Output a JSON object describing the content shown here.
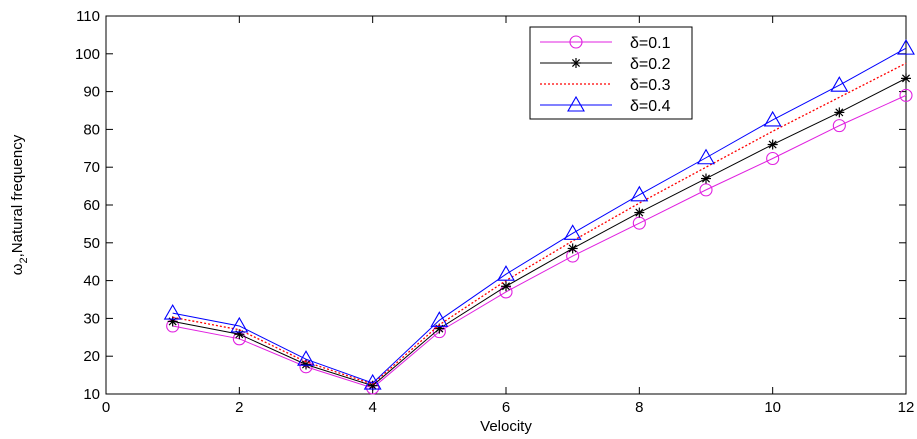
{
  "chart_data": {
    "type": "line",
    "xlabel": "Velocity",
    "ylabel": "ω2,Natural frequency",
    "ylabel_parts": {
      "symbol": "ω",
      "subscript": "2",
      "rest": ",Natural frequency"
    },
    "xlim": [
      0,
      12
    ],
    "ylim": [
      10,
      110
    ],
    "xticks": [
      0,
      2,
      4,
      6,
      8,
      10,
      12
    ],
    "yticks": [
      10,
      20,
      30,
      40,
      50,
      60,
      70,
      80,
      90,
      100,
      110
    ],
    "grid": false,
    "legend_position": "top-right",
    "x": [
      1,
      2,
      3,
      4,
      5,
      6,
      7,
      8,
      9,
      10,
      11,
      12
    ],
    "series": [
      {
        "name": "δ=0.1",
        "color": "#e020e0",
        "linestyle": "solid",
        "marker": "circle",
        "values": [
          28,
          24.6,
          17.2,
          11.6,
          26.5,
          37,
          46.5,
          55.2,
          64,
          72.3,
          81,
          89
        ]
      },
      {
        "name": "δ=0.2",
        "color": "#000000",
        "linestyle": "solid",
        "marker": "asterisk",
        "values": [
          29.2,
          25.8,
          17.8,
          12.2,
          27.3,
          38.5,
          48.5,
          58,
          67,
          76,
          84.5,
          93.5
        ]
      },
      {
        "name": "δ=0.3",
        "color": "#ff0000",
        "linestyle": "dotted",
        "marker": "none",
        "values": [
          30.3,
          27,
          18.5,
          12.6,
          28.3,
          40,
          50.5,
          60.5,
          70,
          79.5,
          88.5,
          97.5
        ]
      },
      {
        "name": "δ=0.4",
        "color": "#0000ff",
        "linestyle": "solid",
        "marker": "triangle",
        "values": [
          31.4,
          28,
          19.2,
          12.9,
          29.5,
          41.7,
          52.5,
          62.7,
          72.5,
          82.5,
          91.7,
          101.5
        ]
      }
    ]
  }
}
